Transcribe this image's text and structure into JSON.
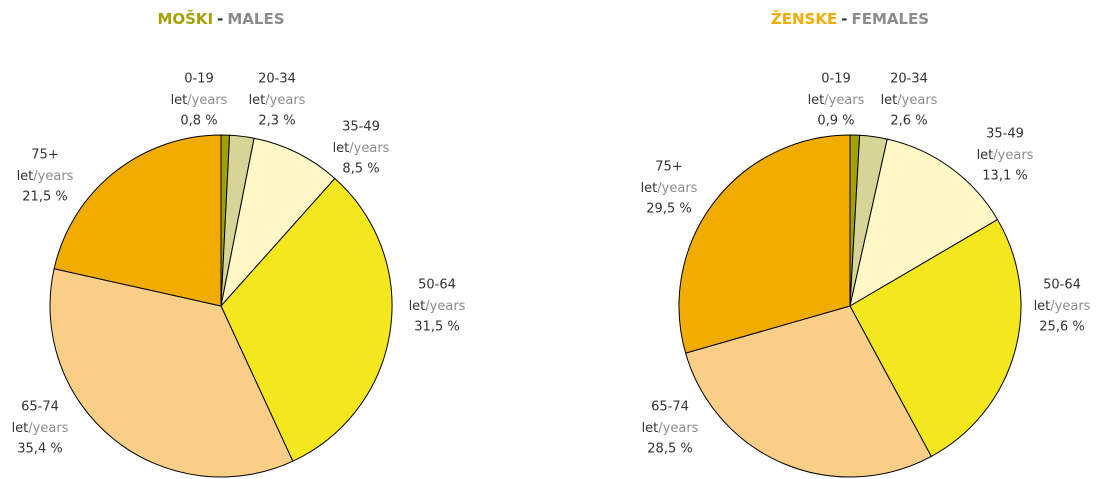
{
  "chart_data": [
    {
      "type": "pie",
      "title": [
        "MOŠKI",
        "-",
        "MALES"
      ],
      "title_color": "#a3a100",
      "unit_label": [
        "let",
        "/years"
      ],
      "categories": [
        "0-19",
        "20-34",
        "35-49",
        "50-64",
        "65-74",
        "75+"
      ],
      "values": [
        0.8,
        2.3,
        8.5,
        31.5,
        35.4,
        21.5
      ],
      "value_labels": [
        "0,8 %",
        "2,3 %",
        "8,5 %",
        "31,5 %",
        "35,4 %",
        "21,5 %"
      ],
      "colors": [
        "#a3a100",
        "#d6d597",
        "#fff7c6",
        "#f5e71e",
        "#f9cf88",
        "#f0ad00"
      ]
    },
    {
      "type": "pie",
      "title": [
        "ŽENSKE",
        "-",
        "FEMALES"
      ],
      "title_color": "#f0ad00",
      "unit_label": [
        "let",
        "/years"
      ],
      "categories": [
        "0-19",
        "20-34",
        "35-49",
        "50-64",
        "65-74",
        "75+"
      ],
      "values": [
        0.9,
        2.6,
        13.1,
        25.6,
        28.5,
        29.5
      ],
      "value_labels": [
        "0,9 %",
        "2,6 %",
        "13,1 %",
        "25,6 %",
        "28,5 %",
        "29,5 %"
      ],
      "colors": [
        "#a3a100",
        "#d6d597",
        "#fff7c6",
        "#f5e71e",
        "#f9cf88",
        "#f0ad00"
      ]
    }
  ]
}
